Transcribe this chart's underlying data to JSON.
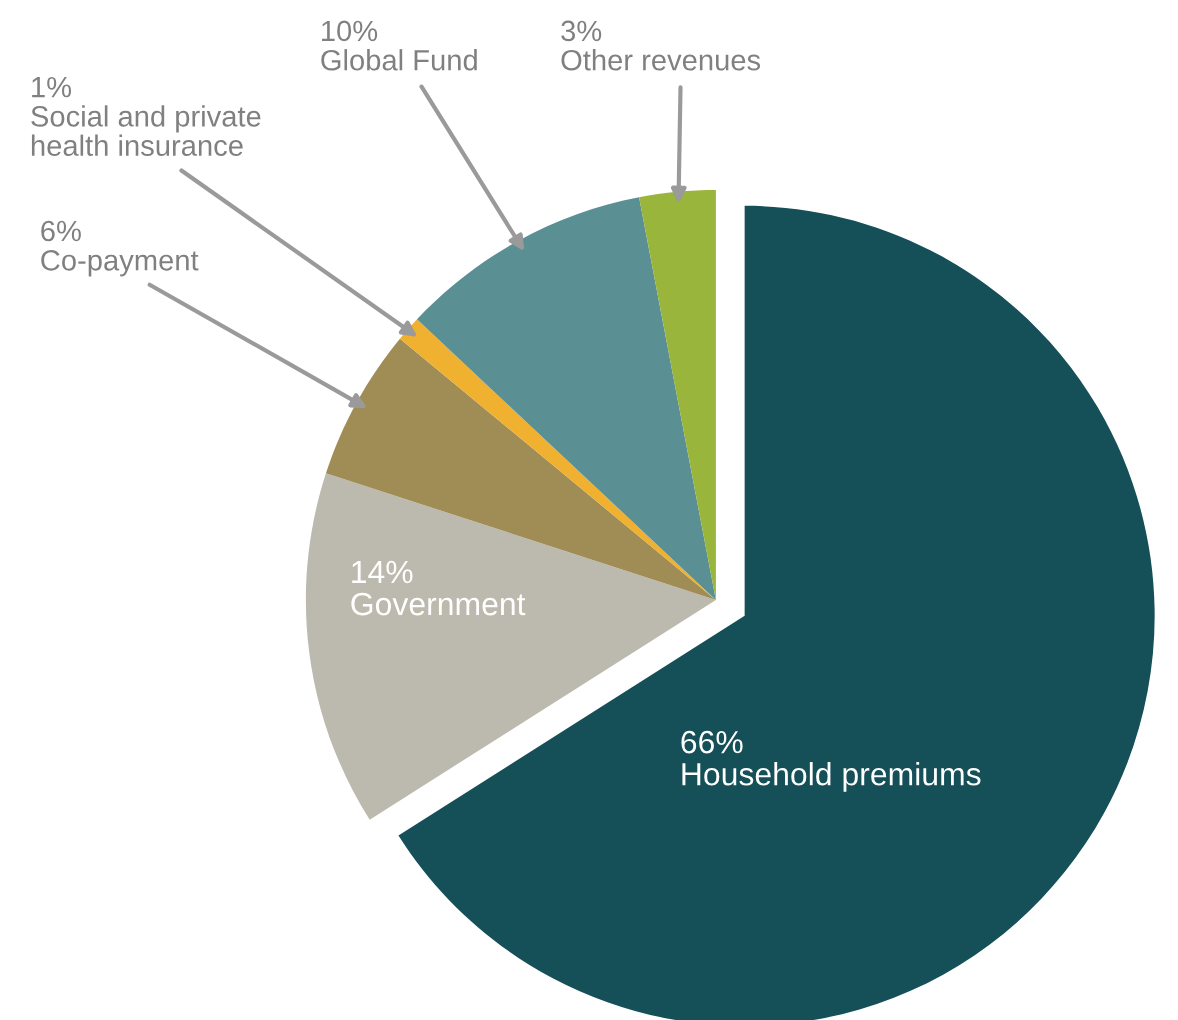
{
  "chart_data": {
    "type": "pie",
    "categories": [
      "Household premiums",
      "Government",
      "Co-payment",
      "Social and private health insurance",
      "Global Fund",
      "Other revenues"
    ],
    "values": [
      66,
      14,
      6,
      1,
      10,
      3
    ],
    "value_labels": [
      "66%",
      "14%",
      "6%",
      "1%",
      "10%",
      "3%"
    ],
    "colors": [
      "#154f57",
      "#bcbaae",
      "#a08c55",
      "#f0b030",
      "#5a8f94",
      "#9ab53c"
    ],
    "legend": false
  }
}
